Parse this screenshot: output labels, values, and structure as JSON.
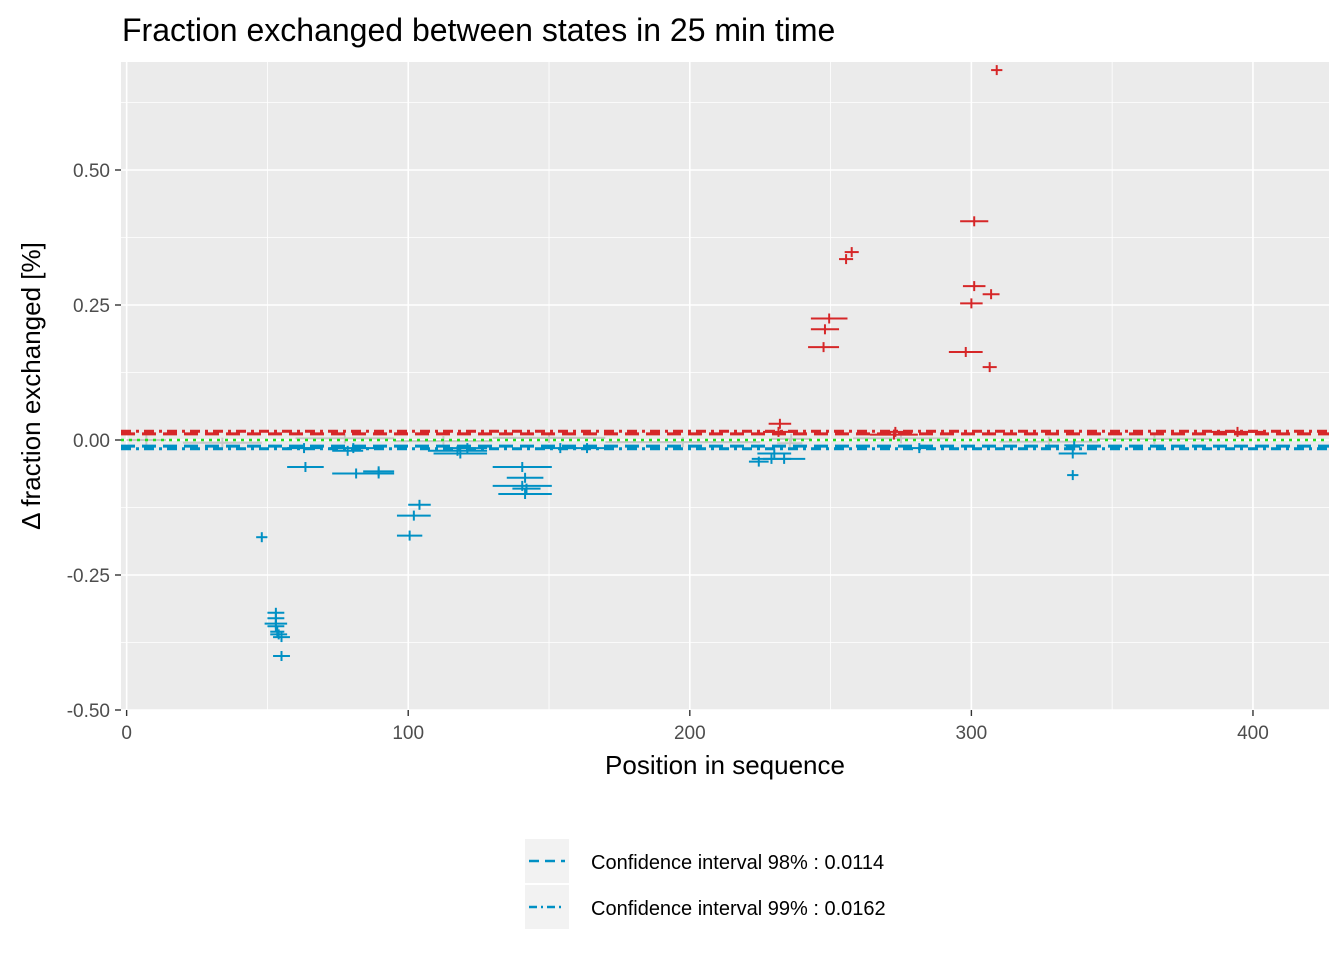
{
  "chart_data": {
    "type": "scatter",
    "title": "Fraction exchanged between states in 25 min time",
    "xlabel": "Position in sequence",
    "ylabel": "Δ fraction exchanged [%]",
    "xlim": [
      -2,
      427
    ],
    "ylim": [
      -0.5,
      0.7
    ],
    "x_ticks": [
      0,
      100,
      200,
      300,
      400
    ],
    "x_tick_labels": [
      "0",
      "100",
      "200",
      "300",
      "400"
    ],
    "y_ticks": [
      -0.5,
      -0.25,
      0,
      0.25,
      0.5
    ],
    "y_tick_labels": [
      "-0.50",
      "-0.25",
      "0.00",
      "0.25",
      "0.50"
    ],
    "grid": true,
    "legend_position": "bottom",
    "colors": {
      "panel": "#ebebeb",
      "grid": "#ffffff",
      "decreased": "#0090c4",
      "increased": "#d62728",
      "insignificant": "#c8c8c8",
      "zero_line": "#22dd22"
    },
    "thresholds": {
      "ci98": 0.0114,
      "ci99": 0.0162
    },
    "legend": [
      {
        "label": "Confidence interval 98% : 0.0114",
        "linestyle": "dashed"
      },
      {
        "label": "Confidence interval 99% : 0.0162",
        "linestyle": "dotdash"
      }
    ],
    "series": [
      {
        "group": "decreased",
        "points": [
          {
            "start": 46,
            "end": 50,
            "value": -0.18
          },
          {
            "start": 50,
            "end": 56,
            "value": -0.32
          },
          {
            "start": 50,
            "end": 56,
            "value": -0.33
          },
          {
            "start": 49,
            "end": 57,
            "value": -0.34
          },
          {
            "start": 50,
            "end": 56,
            "value": -0.345
          },
          {
            "start": 51,
            "end": 56,
            "value": -0.355
          },
          {
            "start": 51,
            "end": 57,
            "value": -0.36
          },
          {
            "start": 52,
            "end": 58,
            "value": -0.365
          },
          {
            "start": 52,
            "end": 58,
            "value": -0.4
          },
          {
            "start": 57,
            "end": 69,
            "value": -0.015
          },
          {
            "start": 57,
            "end": 70,
            "value": -0.05
          },
          {
            "start": 72,
            "end": 89,
            "value": -0.015
          },
          {
            "start": 73,
            "end": 84,
            "value": -0.02
          },
          {
            "start": 73,
            "end": 90,
            "value": -0.062
          },
          {
            "start": 84,
            "end": 95,
            "value": -0.058
          },
          {
            "start": 84,
            "end": 95,
            "value": -0.062
          },
          {
            "start": 96,
            "end": 108,
            "value": -0.14
          },
          {
            "start": 96,
            "end": 105,
            "value": -0.177
          },
          {
            "start": 100,
            "end": 108,
            "value": -0.12
          },
          {
            "start": 107,
            "end": 128,
            "value": -0.02
          },
          {
            "start": 109,
            "end": 128,
            "value": -0.025
          },
          {
            "start": 114,
            "end": 128,
            "value": -0.015
          },
          {
            "start": 130,
            "end": 151,
            "value": -0.05
          },
          {
            "start": 130,
            "end": 151,
            "value": -0.085
          },
          {
            "start": 132,
            "end": 151,
            "value": -0.1
          },
          {
            "start": 135,
            "end": 148,
            "value": -0.07
          },
          {
            "start": 137,
            "end": 147,
            "value": -0.09
          },
          {
            "start": 148,
            "end": 160,
            "value": -0.015
          },
          {
            "start": 155,
            "end": 172,
            "value": -0.015
          },
          {
            "start": 221,
            "end": 228,
            "value": -0.04
          },
          {
            "start": 222,
            "end": 236,
            "value": -0.035
          },
          {
            "start": 224,
            "end": 236,
            "value": -0.025
          },
          {
            "start": 226,
            "end": 241,
            "value": -0.035
          },
          {
            "start": 279,
            "end": 284,
            "value": -0.015
          },
          {
            "start": 331,
            "end": 341,
            "value": -0.025
          },
          {
            "start": 334,
            "end": 338,
            "value": -0.065
          },
          {
            "start": 333,
            "end": 340,
            "value": -0.01
          }
        ]
      },
      {
        "group": "increased",
        "points": [
          {
            "start": 226,
            "end": 237,
            "value": 0.015
          },
          {
            "start": 228,
            "end": 236,
            "value": 0.03
          },
          {
            "start": 242,
            "end": 253,
            "value": 0.172
          },
          {
            "start": 243,
            "end": 253,
            "value": 0.205
          },
          {
            "start": 243,
            "end": 256,
            "value": 0.225
          },
          {
            "start": 253,
            "end": 258,
            "value": 0.335
          },
          {
            "start": 255,
            "end": 260,
            "value": 0.348
          },
          {
            "start": 264,
            "end": 281,
            "value": 0.01
          },
          {
            "start": 268,
            "end": 278,
            "value": 0.015
          },
          {
            "start": 292,
            "end": 304,
            "value": 0.163
          },
          {
            "start": 296,
            "end": 304,
            "value": 0.253
          },
          {
            "start": 297,
            "end": 305,
            "value": 0.285
          },
          {
            "start": 296,
            "end": 306,
            "value": 0.405
          },
          {
            "start": 304,
            "end": 309,
            "value": 0.135
          },
          {
            "start": 304,
            "end": 310,
            "value": 0.27
          },
          {
            "start": 307,
            "end": 311,
            "value": 0.685
          },
          {
            "start": 385,
            "end": 404,
            "value": 0.015
          }
        ]
      },
      {
        "group": "insignificant",
        "points": [
          {
            "start": 0,
            "end": 14,
            "value": 0.0
          },
          {
            "start": 20,
            "end": 48,
            "value": -0.005
          },
          {
            "start": 60,
            "end": 95,
            "value": 0.003
          },
          {
            "start": 95,
            "end": 130,
            "value": -0.002
          },
          {
            "start": 130,
            "end": 170,
            "value": 0.004
          },
          {
            "start": 170,
            "end": 225,
            "value": -0.004
          },
          {
            "start": 229,
            "end": 243,
            "value": 0.002
          },
          {
            "start": 231,
            "end": 240,
            "value": -0.006
          },
          {
            "start": 258,
            "end": 292,
            "value": 0.003
          },
          {
            "start": 310,
            "end": 345,
            "value": -0.003
          },
          {
            "start": 345,
            "end": 385,
            "value": 0.002
          }
        ]
      }
    ]
  }
}
